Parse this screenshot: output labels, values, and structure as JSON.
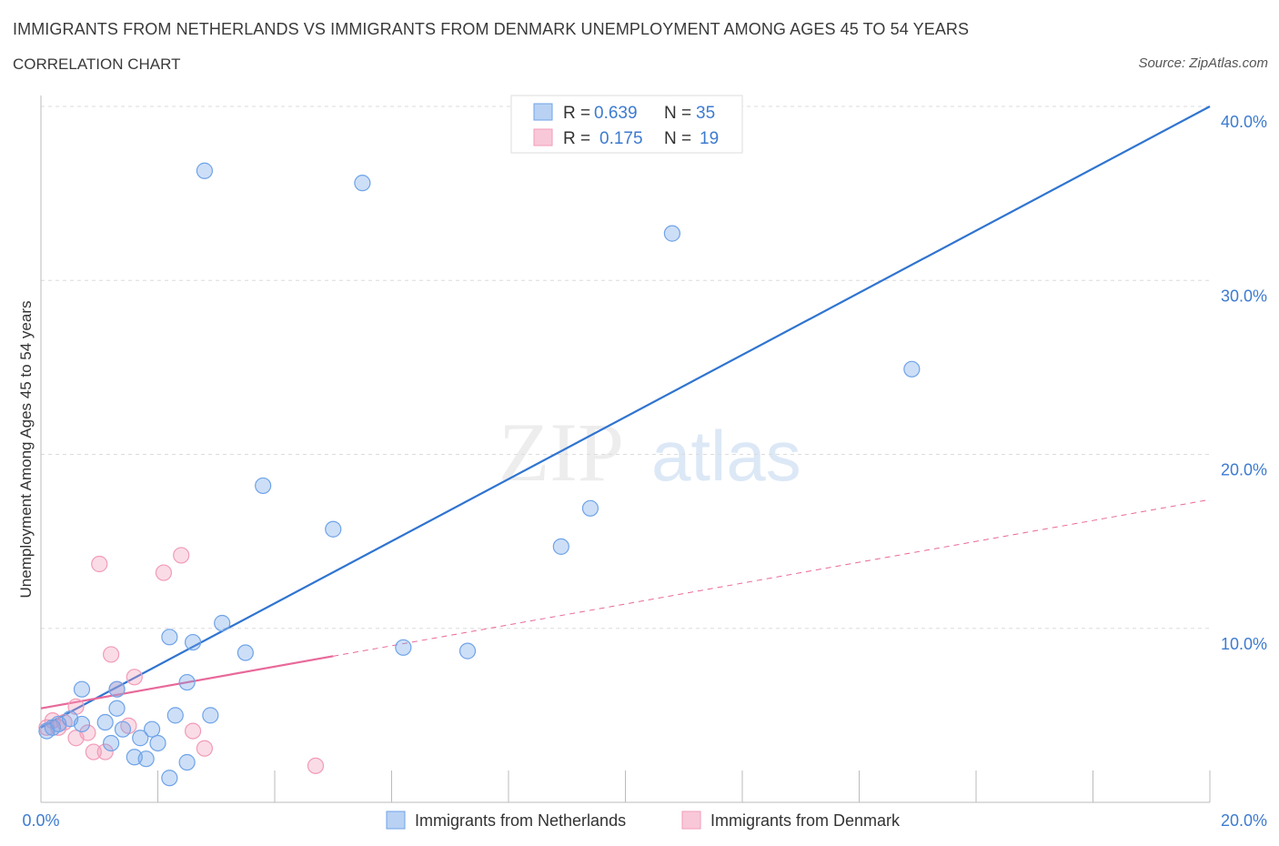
{
  "header": {
    "title": "IMMIGRANTS FROM NETHERLANDS VS IMMIGRANTS FROM DENMARK UNEMPLOYMENT AMONG AGES 45 TO 54 YEARS",
    "subtitle": "CORRELATION CHART",
    "source": "Source: ZipAtlas.com"
  },
  "watermark": {
    "zip": "ZIP",
    "atlas": "atlas"
  },
  "legend": {
    "r_label": "R =",
    "n_label": "N =",
    "rows": [
      {
        "r": "0.639",
        "n": "35"
      },
      {
        "r": "0.175",
        "n": "19"
      }
    ]
  },
  "chart_data": {
    "type": "scatter",
    "title": "IMMIGRANTS FROM NETHERLANDS VS IMMIGRANTS FROM DENMARK UNEMPLOYMENT AMONG AGES 45 TO 54 YEARS",
    "xlabel": "",
    "ylabel": "Unemployment Among Ages 45 to 54 years",
    "xlim": [
      0,
      20
    ],
    "ylim": [
      0,
      40
    ],
    "x_tick_labels": [
      "0.0%",
      "20.0%"
    ],
    "y_ticks": [
      10,
      20,
      30,
      40
    ],
    "y_tick_labels": [
      "10.0%",
      "20.0%",
      "30.0%",
      "40.0%"
    ],
    "grid": true,
    "colors": {
      "netherlands": "#6fa3e8",
      "denmark": "#f29bb7",
      "netherlands_line": "#2f74d0",
      "denmark_line": "#e8699a"
    },
    "series": [
      {
        "name": "Immigrants from Netherlands",
        "points": [
          [
            0.1,
            4.1
          ],
          [
            0.2,
            4.3
          ],
          [
            0.3,
            4.5
          ],
          [
            0.5,
            4.8
          ],
          [
            0.7,
            4.5
          ],
          [
            0.7,
            6.5
          ],
          [
            1.1,
            4.6
          ],
          [
            1.2,
            3.4
          ],
          [
            1.3,
            6.5
          ],
          [
            1.4,
            4.2
          ],
          [
            1.3,
            5.4
          ],
          [
            1.7,
            3.7
          ],
          [
            1.6,
            2.6
          ],
          [
            1.8,
            2.5
          ],
          [
            1.9,
            4.2
          ],
          [
            2.0,
            3.4
          ],
          [
            2.3,
            5.0
          ],
          [
            2.2,
            1.4
          ],
          [
            2.2,
            9.5
          ],
          [
            2.5,
            2.3
          ],
          [
            2.5,
            6.9
          ],
          [
            2.6,
            9.2
          ],
          [
            2.9,
            5.0
          ],
          [
            3.1,
            10.3
          ],
          [
            3.5,
            8.6
          ],
          [
            3.8,
            18.2
          ],
          [
            5.0,
            15.7
          ],
          [
            6.2,
            8.9
          ],
          [
            7.3,
            8.7
          ],
          [
            8.9,
            14.7
          ],
          [
            9.4,
            16.9
          ],
          [
            2.8,
            36.3
          ],
          [
            5.5,
            35.6
          ],
          [
            10.8,
            32.7
          ],
          [
            14.9,
            24.9
          ]
        ],
        "trend": {
          "x": [
            0,
            20
          ],
          "y": [
            4.3,
            40.0
          ],
          "style": "solid"
        }
      },
      {
        "name": "Immigrants from Denmark",
        "points": [
          [
            0.1,
            4.3
          ],
          [
            0.3,
            4.3
          ],
          [
            0.4,
            4.6
          ],
          [
            0.6,
            3.7
          ],
          [
            0.6,
            5.5
          ],
          [
            0.8,
            4.0
          ],
          [
            0.9,
            2.9
          ],
          [
            1.0,
            13.7
          ],
          [
            1.1,
            2.9
          ],
          [
            1.2,
            8.5
          ],
          [
            1.3,
            6.5
          ],
          [
            1.5,
            4.4
          ],
          [
            1.6,
            7.2
          ],
          [
            2.1,
            13.2
          ],
          [
            2.4,
            14.2
          ],
          [
            2.6,
            4.1
          ],
          [
            2.8,
            3.1
          ],
          [
            4.7,
            2.1
          ],
          [
            0.2,
            4.7
          ]
        ],
        "trend": {
          "x": [
            0,
            5.0,
            20
          ],
          "y": [
            5.4,
            8.4,
            17.4
          ],
          "style": "solid-then-dashed"
        }
      }
    ]
  },
  "bottom_legend": {
    "items": [
      "Immigrants from Netherlands",
      "Immigrants from Denmark"
    ]
  }
}
